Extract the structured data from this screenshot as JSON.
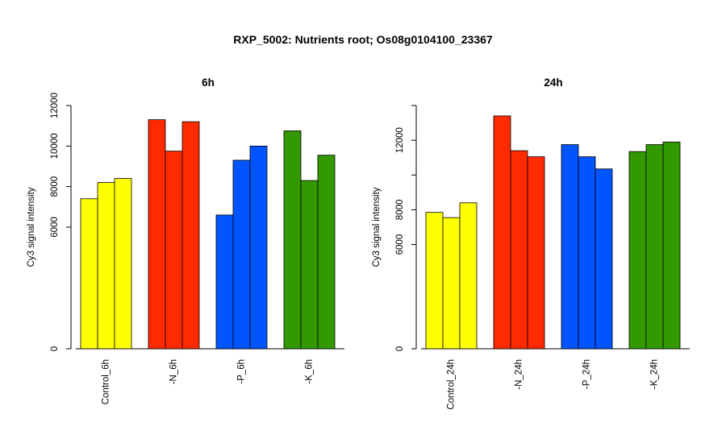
{
  "title": "RXP_5002: Nutrients root; Os08g0104100_23367",
  "chart_data": [
    {
      "type": "bar",
      "title": "6h",
      "ylabel": "Cy3 signal intensity",
      "ylim": [
        0,
        12000
      ],
      "yticks": [
        0,
        6000,
        8000,
        10000,
        12000
      ],
      "yticks_labeled": [
        0,
        6000,
        8000,
        10000,
        12000
      ],
      "groups": [
        {
          "label": "Control_6h",
          "color": "#FFFF00",
          "values": [
            7400,
            8200,
            8400
          ]
        },
        {
          "label": "-N_6h",
          "color": "#FF2A00",
          "values": [
            11300,
            9750,
            11200
          ]
        },
        {
          "label": "-P_6h",
          "color": "#0055FF",
          "values": [
            6600,
            9300,
            10000
          ]
        },
        {
          "label": "-K_6h",
          "color": "#339900",
          "values": [
            10750,
            8300,
            9550
          ]
        }
      ]
    },
    {
      "type": "bar",
      "title": "24h",
      "ylabel": "Cy3 signal intensity",
      "ylim": [
        0,
        14000
      ],
      "yticks": [
        0,
        6000,
        8000,
        10000,
        12000,
        14000
      ],
      "yticks_labeled": [
        0,
        6000,
        8000,
        12000
      ],
      "groups": [
        {
          "label": "Control_24h",
          "color": "#FFFF00",
          "values": [
            7850,
            7550,
            8400
          ]
        },
        {
          "label": "-N_24h",
          "color": "#FF2A00",
          "values": [
            13400,
            11400,
            11050
          ]
        },
        {
          "label": "-P_24h",
          "color": "#0055FF",
          "values": [
            11750,
            11050,
            10350
          ]
        },
        {
          "label": "-K_24h",
          "color": "#339900",
          "values": [
            11350,
            11750,
            11900
          ]
        }
      ]
    }
  ]
}
